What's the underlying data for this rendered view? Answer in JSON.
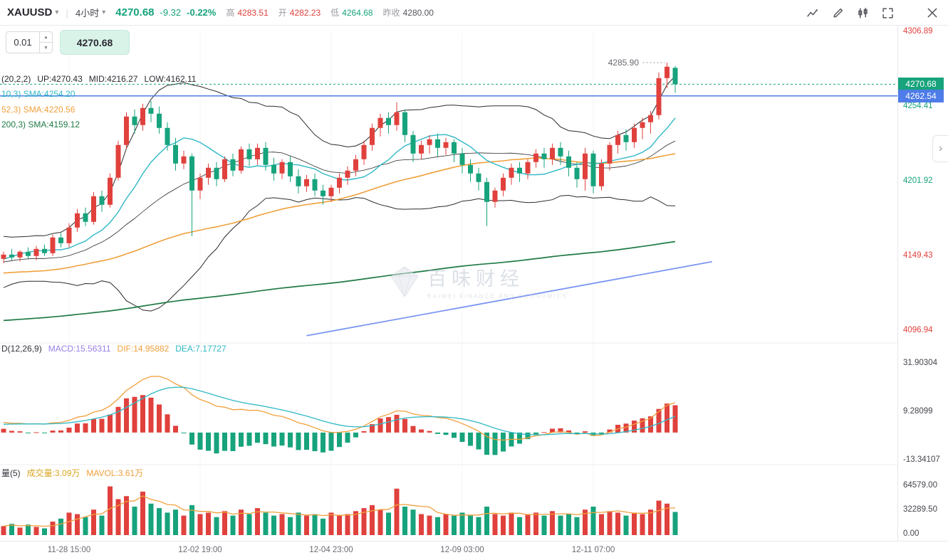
{
  "topbar": {
    "symbol": "XAUUSD",
    "interval": "4小时",
    "last": "4270.68",
    "change": "-9.32",
    "change_pct": "-0.22%",
    "high_label": "高",
    "high": "4283.51",
    "open_label": "开",
    "open": "4282.23",
    "low_label": "低",
    "low": "4264.68",
    "prev_label": "昨收",
    "prev": "4280.00",
    "icons": [
      "indicator-icon",
      "draw-icon",
      "compare-icon",
      "fullscreen-icon",
      "close-icon"
    ]
  },
  "glyphs": {
    "caret_down": "▾",
    "step_up": "▲",
    "step_down": "▼",
    "chevron_right": "›",
    "divider": "|"
  },
  "order_panel": {
    "qty": "0.01",
    "price_button": "4270.68"
  },
  "overlays": {
    "boll_title": "(20,2,2)",
    "boll_up": "UP:4270.43",
    "boll_mid": "MID:4216.27",
    "boll_low": "LOW:4162.11",
    "ma10_label": "10,3)  SMA:4254.20",
    "ma52_label": "52,3)  SMA:4220.56",
    "ma200_label": "200,3)  SMA:4159.12",
    "high_annotation": "4285.90"
  },
  "macd_header": {
    "title": "D(12,26,9)",
    "macd": "MACD:15.56311",
    "dif": "DIF:14.95882",
    "dea": "DEA:7.17727"
  },
  "vol_header": {
    "title": "量(5)",
    "vol": "成交量:3.09万",
    "mavol": "MAVOL:3.61万"
  },
  "price_axis": {
    "labels": [
      {
        "text": "4306.89",
        "price": 4306.89,
        "color": "#e0413d"
      },
      {
        "text": "4254.41",
        "price": 4254.41,
        "color": "#17a37c"
      },
      {
        "text": "4201.92",
        "price": 4201.92,
        "color": "#17a37c"
      },
      {
        "text": "4149.43",
        "price": 4149.43,
        "color": "#e0413d"
      },
      {
        "text": "4096.94",
        "price": 4096.94,
        "color": "#e0413d"
      }
    ],
    "last_badge": "4270.68",
    "selected_badge": "4262.54"
  },
  "macd_axis": {
    "labels": [
      {
        "text": "31.90304",
        "value": 31.90304
      },
      {
        "text": "9.28099",
        "value": 9.28099
      },
      {
        "text": "-13.34107",
        "value": -13.34107
      }
    ]
  },
  "volume_axis": {
    "labels": [
      {
        "text": "64579.00",
        "value": 64579
      },
      {
        "text": "32289.50",
        "value": 32289.5
      },
      {
        "text": "0.00",
        "value": 0
      }
    ]
  },
  "time_axis": [
    {
      "label": "11-28 15:00",
      "idx": 8
    },
    {
      "label": "12-02 19:00",
      "idx": 24
    },
    {
      "label": "12-04 23:00",
      "idx": 40
    },
    {
      "label": "12-09 03:00",
      "idx": 56
    },
    {
      "label": "12-11 07:00",
      "idx": 72
    }
  ],
  "watermark": {
    "cn": "百味财经",
    "en": "BAIWEI FINANCE AND ECONOMICS"
  },
  "colors": {
    "up": "#e0413d",
    "down": "#17a37c",
    "ma10": "#2fb8c6",
    "ma52": "#f0a03c",
    "ma200": "#1f7a46",
    "boll": "#2b2b2b",
    "blue_line": "#4e7ce8",
    "trend": "#7b96f2",
    "macd_label": "#9b7fe8"
  },
  "chart_data": {
    "type": "candlestick",
    "symbol": "XAUUSD",
    "interval": "4小时",
    "indicators": {
      "boll": [
        20,
        2,
        2
      ],
      "ma": [
        10,
        52,
        200
      ],
      "macd": [
        12,
        26,
        9
      ],
      "mavol": 5
    },
    "last_price": 4270.68,
    "blue_line_price": 4262.54,
    "high_marker": {
      "idx": 81,
      "price": 4285.9
    },
    "trendline": {
      "idx1": 37,
      "price1": 4094,
      "idx2": 86.5,
      "price2": 4146
    },
    "ma_seed": {
      "start": 4060,
      "end": 4148,
      "count": 200,
      "wiggle": 12
    },
    "candles": [
      [
        4148,
        4153,
        4145,
        4151
      ],
      [
        4151,
        4155,
        4147,
        4149
      ],
      [
        4149,
        4154,
        4146,
        4153
      ],
      [
        4153,
        4156,
        4148,
        4150
      ],
      [
        4150,
        4157,
        4147,
        4155
      ],
      [
        4155,
        4158,
        4150,
        4152
      ],
      [
        4152,
        4165,
        4150,
        4163
      ],
      [
        4163,
        4166,
        4156,
        4159
      ],
      [
        4159,
        4173,
        4156,
        4170
      ],
      [
        4170,
        4183,
        4167,
        4180
      ],
      [
        4180,
        4184,
        4171,
        4174
      ],
      [
        4174,
        4195,
        4172,
        4192
      ],
      [
        4192,
        4196,
        4181,
        4186
      ],
      [
        4186,
        4208,
        4184,
        4205
      ],
      [
        4205,
        4231,
        4203,
        4228
      ],
      [
        4228,
        4251,
        4225,
        4248
      ],
      [
        4248,
        4253,
        4236,
        4242
      ],
      [
        4242,
        4257,
        4238,
        4254
      ],
      [
        4254,
        4259,
        4244,
        4250
      ],
      [
        4250,
        4255,
        4236,
        4240
      ],
      [
        4240,
        4244,
        4224,
        4228
      ],
      [
        4228,
        4233,
        4210,
        4215
      ],
      [
        4215,
        4224,
        4211,
        4220
      ],
      [
        4220,
        4222,
        4164,
        4196
      ],
      [
        4196,
        4208,
        4190,
        4205
      ],
      [
        4205,
        4215,
        4200,
        4212
      ],
      [
        4212,
        4216,
        4199,
        4204
      ],
      [
        4204,
        4220,
        4202,
        4218
      ],
      [
        4218,
        4222,
        4206,
        4210
      ],
      [
        4210,
        4227,
        4208,
        4225
      ],
      [
        4225,
        4229,
        4213,
        4218
      ],
      [
        4218,
        4229,
        4214,
        4226
      ],
      [
        4226,
        4230,
        4210,
        4214
      ],
      [
        4214,
        4219,
        4203,
        4208
      ],
      [
        4208,
        4218,
        4204,
        4216
      ],
      [
        4216,
        4220,
        4202,
        4206
      ],
      [
        4206,
        4211,
        4194,
        4199
      ],
      [
        4199,
        4207,
        4195,
        4204
      ],
      [
        4204,
        4208,
        4192,
        4196
      ],
      [
        4196,
        4200,
        4186,
        4192
      ],
      [
        4192,
        4200,
        4188,
        4198
      ],
      [
        4198,
        4208,
        4194,
        4205
      ],
      [
        4205,
        4213,
        4200,
        4210
      ],
      [
        4210,
        4221,
        4206,
        4218
      ],
      [
        4218,
        4231,
        4214,
        4228
      ],
      [
        4228,
        4243,
        4224,
        4240
      ],
      [
        4240,
        4250,
        4234,
        4247
      ],
      [
        4247,
        4251,
        4236,
        4242
      ],
      [
        4242,
        4258,
        4238,
        4251
      ],
      [
        4251,
        4253,
        4230,
        4235
      ],
      [
        4235,
        4238,
        4216,
        4222
      ],
      [
        4222,
        4231,
        4218,
        4228
      ],
      [
        4228,
        4235,
        4222,
        4232
      ],
      [
        4232,
        4236,
        4220,
        4226
      ],
      [
        4226,
        4233,
        4221,
        4230
      ],
      [
        4230,
        4232,
        4216,
        4222
      ],
      [
        4222,
        4226,
        4208,
        4214
      ],
      [
        4214,
        4218,
        4202,
        4208
      ],
      [
        4208,
        4212,
        4196,
        4202
      ],
      [
        4202,
        4205,
        4171,
        4188
      ],
      [
        4188,
        4198,
        4184,
        4196
      ],
      [
        4196,
        4208,
        4192,
        4205
      ],
      [
        4205,
        4215,
        4200,
        4212
      ],
      [
        4212,
        4216,
        4202,
        4208
      ],
      [
        4208,
        4218,
        4204,
        4216
      ],
      [
        4216,
        4225,
        4212,
        4222
      ],
      [
        4222,
        4226,
        4212,
        4218
      ],
      [
        4218,
        4229,
        4214,
        4226
      ],
      [
        4226,
        4230,
        4214,
        4220
      ],
      [
        4220,
        4224,
        4206,
        4212
      ],
      [
        4212,
        4216,
        4198,
        4204
      ],
      [
        4204,
        4226,
        4196,
        4222
      ],
      [
        4222,
        4224,
        4194,
        4199
      ],
      [
        4199,
        4218,
        4196,
        4215
      ],
      [
        4215,
        4230,
        4210,
        4228
      ],
      [
        4228,
        4238,
        4222,
        4235
      ],
      [
        4235,
        4239,
        4224,
        4230
      ],
      [
        4230,
        4243,
        4226,
        4240
      ],
      [
        4240,
        4247,
        4232,
        4244
      ],
      [
        4244,
        4252,
        4236,
        4249
      ],
      [
        4249,
        4279,
        4246,
        4275
      ],
      [
        4275,
        4285.9,
        4268,
        4283
      ],
      [
        4282.23,
        4283.51,
        4264.68,
        4270.68
      ]
    ],
    "volumes": [
      12000,
      15000,
      10000,
      14000,
      11000,
      9000,
      18000,
      22000,
      30000,
      28000,
      24000,
      34000,
      26000,
      65000,
      48000,
      52000,
      38000,
      58000,
      42000,
      36000,
      30000,
      34000,
      26000,
      40000,
      28000,
      30000,
      24000,
      32000,
      26000,
      34000,
      28000,
      36000,
      30000,
      26000,
      28000,
      24000,
      30000,
      26000,
      28000,
      22000,
      30000,
      26000,
      28000,
      32000,
      36000,
      40000,
      34000,
      30000,
      62000,
      38000,
      34000,
      28000,
      26000,
      24000,
      28000,
      26000,
      30000,
      26000,
      24000,
      38000,
      28000,
      26000,
      30000,
      24000,
      28000,
      30000,
      26000,
      32000,
      26000,
      28000,
      24000,
      34000,
      38000,
      28000,
      32000,
      30000,
      26000,
      30000,
      28000,
      34000,
      46000,
      42000,
      30900
    ]
  }
}
